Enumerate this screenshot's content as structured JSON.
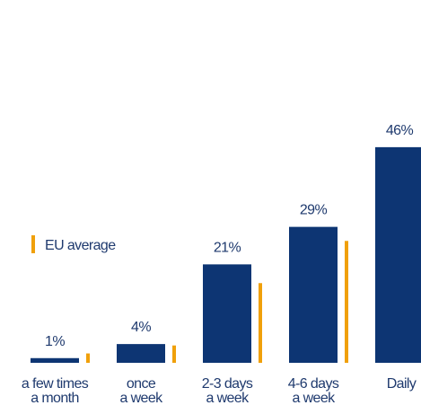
{
  "chart_data": {
    "type": "bar",
    "categories": [
      [
        "a few times",
        "a month"
      ],
      [
        "once",
        "a week"
      ],
      [
        "2-3 days",
        "a week"
      ],
      [
        "4-6 days",
        "a week"
      ],
      [
        "Daily"
      ]
    ],
    "series": [
      {
        "name": null,
        "color": "#0d3573",
        "values": [
          1,
          4,
          21,
          29,
          46
        ],
        "value_labels": [
          "1%",
          "4%",
          "21%",
          "29%",
          "46%"
        ]
      },
      {
        "name": "EU average",
        "color": "#f0a00a",
        "values": [
          2,
          3.7,
          17,
          26,
          null
        ]
      }
    ],
    "ylim": [
      0,
      50
    ]
  }
}
